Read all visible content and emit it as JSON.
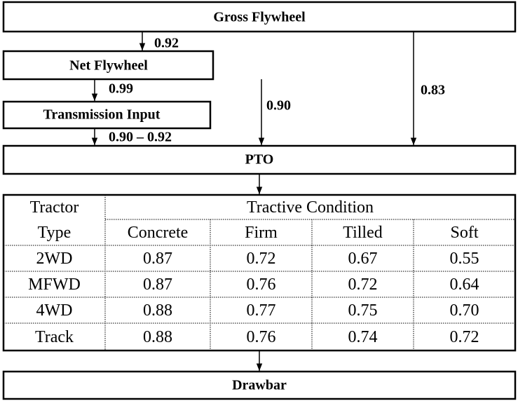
{
  "boxes": {
    "gross": "Gross Flywheel",
    "net": "Net Flywheel",
    "transmission": "Transmission Input",
    "pto": "PTO",
    "drawbar": "Drawbar"
  },
  "efficiencies": {
    "gross_to_net": "0.92",
    "net_to_transmission": "0.99",
    "transmission_to_pto": "0.90 – 0.92",
    "net_to_pto": "0.90",
    "gross_to_pto": "0.83"
  },
  "table": {
    "row_header": [
      "Tractor",
      "Type"
    ],
    "group_header": "Tractive Condition",
    "columns": [
      "Concrete",
      "Firm",
      "Tilled",
      "Soft"
    ],
    "rows": [
      [
        "2WD",
        "0.87",
        "0.72",
        "0.67",
        "0.55"
      ],
      [
        "MFWD",
        "0.87",
        "0.76",
        "0.72",
        "0.64"
      ],
      [
        "4WD",
        "0.88",
        "0.77",
        "0.75",
        "0.70"
      ],
      [
        "Track",
        "0.88",
        "0.76",
        "0.74",
        "0.72"
      ]
    ]
  }
}
